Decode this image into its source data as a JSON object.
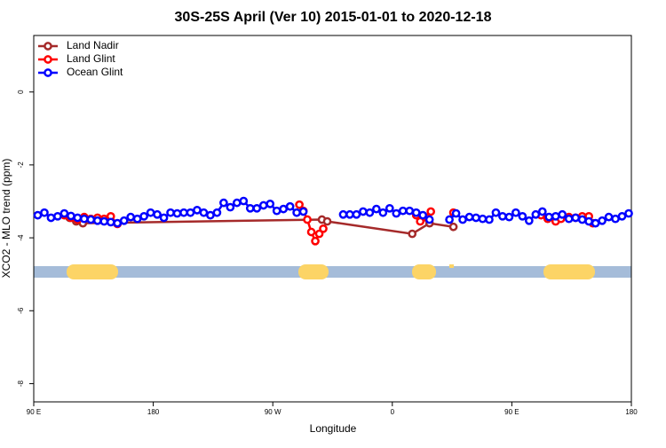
{
  "chart_data": {
    "type": "line",
    "title": "30S-25S April (Ver 10)   2015-01-01 to 2020-12-18",
    "x_label": "Longitude",
    "y_label": "XCO2 - MLO trend (ppm)",
    "xlim": [
      90,
      540
    ],
    "ylim": [
      -8.5,
      1.55
    ],
    "xticks": [
      {
        "value": 90,
        "label": "90 E"
      },
      180,
      {
        "value": 270,
        "label": "90 W"
      },
      {
        "value": 360,
        "label": "0"
      },
      {
        "value": 450,
        "label": "90 E"
      },
      {
        "value": 540,
        "label": "180"
      }
    ],
    "yticks": [
      0,
      -2,
      -4,
      -6,
      -8
    ],
    "legend": "top-left",
    "series": [
      {
        "name": "Land Nadir",
        "color": "#a52a2a",
        "x": [
          117,
          122,
          127,
          307,
          311,
          375,
          388,
          406
        ],
        "values": [
          -3.45,
          -3.55,
          -3.6,
          -3.5,
          -3.55,
          -3.89,
          -3.6,
          -3.7
        ]
      },
      {
        "name": "Land Glint",
        "color": "#ff0000",
        "x": [
          113,
          118,
          123,
          128,
          133,
          138,
          143,
          148,
          153,
          200,
          290,
          293,
          296,
          299,
          302,
          305,
          308,
          340,
          378,
          381,
          386,
          389,
          398,
          406,
          440,
          472,
          477,
          483,
          487,
          493,
          498,
          503,
          508,
          511
        ],
        "values": [
          -3.38,
          -3.45,
          -3.5,
          -3.43,
          -3.48,
          -3.45,
          -3.48,
          -3.41,
          -3.62,
          null,
          -3.09,
          -3.26,
          -3.5,
          -3.84,
          -4.09,
          -3.89,
          -3.75,
          null,
          -3.38,
          -3.55,
          -3.45,
          -3.28,
          null,
          -3.31,
          null,
          -3.38,
          -3.48,
          -3.55,
          -3.48,
          -3.43,
          -3.45,
          -3.41,
          -3.41,
          -3.6
        ]
      },
      {
        "name": "Ocean Glint",
        "color": "#0000ff",
        "x": [
          93,
          98,
          103,
          108,
          113,
          118,
          123,
          128,
          133,
          138,
          143,
          148,
          153,
          158,
          163,
          168,
          173,
          178,
          183,
          188,
          193,
          198,
          203,
          208,
          213,
          218,
          223,
          228,
          233,
          238,
          243,
          248,
          253,
          258,
          263,
          268,
          273,
          278,
          283,
          288,
          293,
          298,
          323,
          328,
          333,
          338,
          343,
          348,
          353,
          358,
          363,
          368,
          373,
          378,
          383,
          388,
          393,
          403,
          408,
          413,
          418,
          423,
          428,
          433,
          438,
          443,
          448,
          453,
          458,
          463,
          468,
          473,
          478,
          483,
          488,
          493,
          498,
          503,
          508,
          513,
          518,
          523,
          528,
          533,
          538
        ],
        "values": [
          -3.38,
          -3.31,
          -3.45,
          -3.41,
          -3.33,
          -3.4,
          -3.45,
          -3.48,
          -3.5,
          -3.53,
          -3.55,
          -3.57,
          -3.6,
          -3.53,
          -3.43,
          -3.48,
          -3.41,
          -3.31,
          -3.36,
          -3.45,
          -3.31,
          -3.33,
          -3.31,
          -3.31,
          -3.24,
          -3.31,
          -3.38,
          -3.31,
          -3.04,
          -3.16,
          -3.04,
          -2.99,
          -3.19,
          -3.19,
          -3.11,
          -3.07,
          -3.26,
          -3.21,
          -3.14,
          -3.31,
          -3.28,
          null,
          -3.36,
          -3.36,
          -3.36,
          -3.28,
          -3.31,
          -3.21,
          -3.31,
          -3.19,
          -3.33,
          -3.26,
          -3.26,
          -3.31,
          -3.38,
          -3.5,
          null,
          -3.5,
          -3.33,
          -3.5,
          -3.43,
          -3.45,
          -3.48,
          -3.5,
          -3.31,
          -3.41,
          -3.43,
          -3.31,
          -3.41,
          -3.53,
          -3.36,
          -3.28,
          -3.43,
          -3.41,
          -3.36,
          -3.48,
          -3.45,
          -3.5,
          -3.55,
          -3.6,
          -3.53,
          -3.43,
          -3.48,
          -3.41,
          -3.33
        ]
      }
    ]
  }
}
